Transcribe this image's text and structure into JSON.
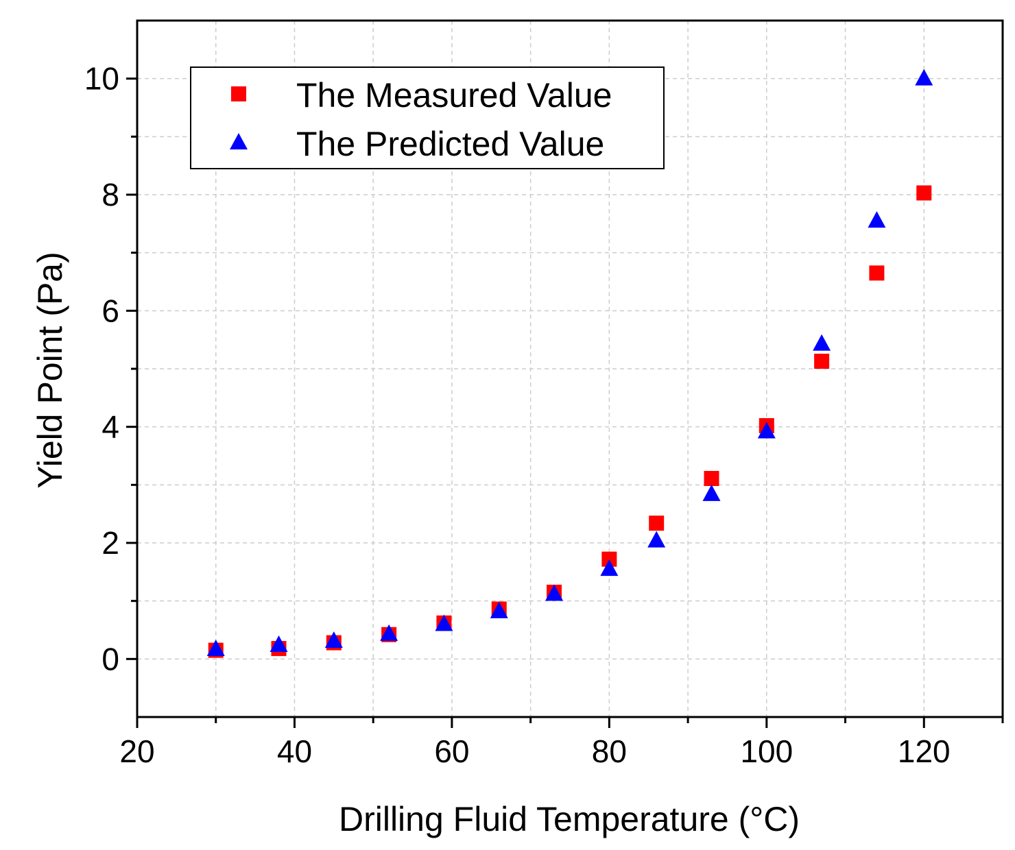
{
  "chart_data": {
    "type": "scatter",
    "xlabel": "Drilling Fluid Temperature (°C)",
    "ylabel": "Yield Point (Pa)",
    "xlim": [
      20,
      130
    ],
    "ylim": [
      -1,
      11
    ],
    "x_ticks": [
      20,
      40,
      60,
      80,
      100,
      120
    ],
    "x_minor_ticks": [
      30,
      50,
      70,
      90,
      110,
      130
    ],
    "y_ticks": [
      0,
      2,
      4,
      6,
      8,
      10
    ],
    "y_minor_ticks": [
      1,
      3,
      5,
      7,
      9
    ],
    "grid": true,
    "legend_position": "top-left",
    "series": [
      {
        "name": "The Measured Value",
        "marker": "square",
        "color": "#ff0000",
        "x": [
          30,
          38,
          45,
          52,
          59,
          66,
          73,
          80,
          86,
          93,
          100,
          107,
          114,
          120
        ],
        "y": [
          0.15,
          0.18,
          0.28,
          0.42,
          0.62,
          0.86,
          1.15,
          1.72,
          2.34,
          3.11,
          4.02,
          5.13,
          6.65,
          8.03
        ]
      },
      {
        "name": "The Predicted Value",
        "marker": "triangle",
        "color": "#0000ff",
        "x": [
          30,
          38,
          45,
          52,
          59,
          66,
          73,
          80,
          86,
          93,
          100,
          107,
          114,
          120
        ],
        "y": [
          0.17,
          0.24,
          0.31,
          0.43,
          0.6,
          0.82,
          1.12,
          1.55,
          2.04,
          2.84,
          3.92,
          5.43,
          7.55,
          10.0
        ]
      }
    ]
  }
}
